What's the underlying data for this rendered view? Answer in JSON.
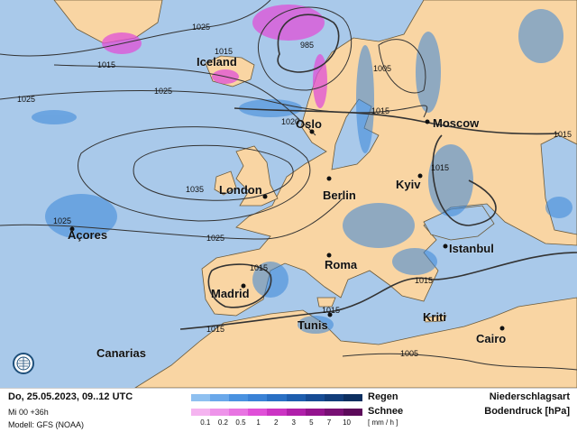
{
  "map": {
    "colors": {
      "sea": "#a9c9ea",
      "land": "#f9d5a3",
      "rain": "#3a86d8",
      "snow": "#e050d8",
      "isobar": "#333333"
    },
    "cities": [
      {
        "name": "Iceland"
      },
      {
        "name": "Oslo"
      },
      {
        "name": "Moscow"
      },
      {
        "name": "London"
      },
      {
        "name": "Berlin"
      },
      {
        "name": "Kyiv"
      },
      {
        "name": "Açores"
      },
      {
        "name": "Istanbul"
      },
      {
        "name": "Roma"
      },
      {
        "name": "Madrid"
      },
      {
        "name": "Tunis"
      },
      {
        "name": "Kriti"
      },
      {
        "name": "Cairo"
      },
      {
        "name": "Canarias"
      }
    ],
    "isobar_labels": [
      "1025",
      "1015",
      "1015",
      "985",
      "1005",
      "1025",
      "1025",
      "1015",
      "1020",
      "1015",
      "1015",
      "1035",
      "1025",
      "1025",
      "1015",
      "1015",
      "1015",
      "1015",
      "1005"
    ],
    "logo_icon": "globe-icon"
  },
  "legend": {
    "date": "Do, 25.05.2023, 09..12 UTC",
    "run": "Mi 00 +36h",
    "model": "Modell: GFS (NOAA)",
    "rain_label": "Regen",
    "snow_label": "Schnee",
    "rain_colors": [
      "#8ec0f0",
      "#6aa8ea",
      "#4a92e0",
      "#3a82d6",
      "#2a70c4",
      "#1e5eae",
      "#174c94",
      "#123d7a",
      "#0d2f60"
    ],
    "snow_colors": [
      "#f5b4f0",
      "#ee94ea",
      "#e874e2",
      "#e050d8",
      "#cc34c4",
      "#b020aa",
      "#94148e",
      "#781074",
      "#5c0a5a"
    ],
    "ticks": [
      "0.1",
      "0.2",
      "0.5",
      "1",
      "2",
      "3",
      "5",
      "7",
      "10"
    ],
    "unit": "[ mm / h ]",
    "title1": "Niederschlagsart",
    "title2": "Bodendruck [hPa]"
  }
}
